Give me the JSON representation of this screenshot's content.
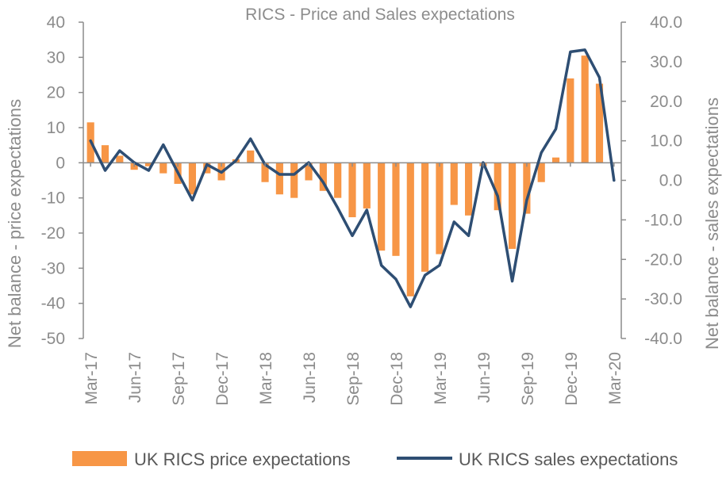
{
  "chart_data": {
    "type": "bar+line",
    "title": "RICS - Price and Sales expectations",
    "ylabel_left": "Net balance - price expectations",
    "ylabel_right": "Net balance - sales expectations",
    "xlabel": "",
    "ylim_left": [
      -50,
      40
    ],
    "ylim_right": [
      -40,
      40
    ],
    "yticks_left": [
      "40",
      "30",
      "20",
      "10",
      "0",
      "-10",
      "-20",
      "-30",
      "-40",
      "-50"
    ],
    "yticks_right": [
      "40.0",
      "30.0",
      "20.0",
      "10.0",
      "0.0",
      "-10.0",
      "-20.0",
      "-30.0",
      "-40.0"
    ],
    "x_tick_labels": [
      "Mar-17",
      "Jun-17",
      "Sep-17",
      "Dec-17",
      "Mar-18",
      "Jun-18",
      "Sep-18",
      "Dec-18",
      "Mar-19",
      "Jun-19",
      "Sep-19",
      "Dec-19",
      "Mar-20"
    ],
    "categories": [
      "Mar-17",
      "Apr-17",
      "May-17",
      "Jun-17",
      "Jul-17",
      "Aug-17",
      "Sep-17",
      "Oct-17",
      "Nov-17",
      "Dec-17",
      "Jan-18",
      "Feb-18",
      "Mar-18",
      "Apr-18",
      "May-18",
      "Jun-18",
      "Jul-18",
      "Aug-18",
      "Sep-18",
      "Oct-18",
      "Nov-18",
      "Dec-18",
      "Jan-19",
      "Feb-19",
      "Mar-19",
      "Apr-19",
      "May-19",
      "Jun-19",
      "Jul-19",
      "Aug-19",
      "Sep-19",
      "Oct-19",
      "Nov-19",
      "Dec-19",
      "Jan-20",
      "Feb-20",
      "Mar-20"
    ],
    "series": [
      {
        "name": "UK RICS price expectations",
        "type": "bar",
        "axis": "left",
        "color": "#f79646",
        "values": [
          11.5,
          5,
          2,
          -2,
          -1,
          -3,
          -6,
          -9,
          -3,
          -5,
          1,
          3.5,
          -5.5,
          -9,
          -10,
          -5,
          -8,
          -10,
          -15.5,
          -13,
          -25,
          -26.5,
          -38,
          -31,
          -26,
          -12,
          -15,
          -1,
          -13.5,
          -24.5,
          -14.5,
          -5.5,
          1.5,
          24,
          30.5,
          22.5,
          0
        ]
      },
      {
        "name": "UK RICS sales expectations",
        "type": "line",
        "axis": "right",
        "color": "#2e4e73",
        "values": [
          10,
          2.5,
          7.5,
          4.5,
          2.5,
          9,
          2,
          -5,
          4,
          2,
          5,
          10.5,
          4,
          1.5,
          1.5,
          4.5,
          -0.5,
          -7,
          -14,
          -7.5,
          -21.5,
          -25,
          -32,
          -24,
          -21.5,
          -10.5,
          -14,
          4.5,
          -4,
          -25.5,
          -5,
          7,
          13,
          32.5,
          33,
          26,
          0
        ]
      }
    ],
    "legend_position": "bottom",
    "grid": false
  }
}
